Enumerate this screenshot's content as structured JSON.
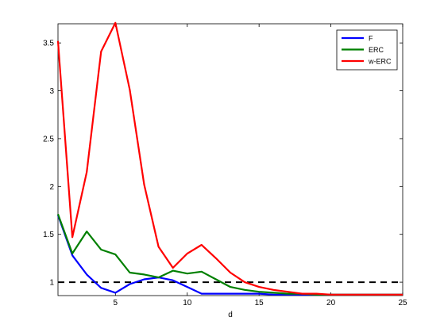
{
  "chart_data": {
    "type": "line",
    "title": "",
    "xlabel": "d",
    "ylabel": "",
    "xlim": [
      1,
      25
    ],
    "ylim": [
      0.86,
      3.7
    ],
    "grid": false,
    "legend_position": "top-right",
    "xticks": [
      5,
      10,
      15,
      20,
      25
    ],
    "yticks": [
      1,
      1.5,
      2,
      2.5,
      3,
      3.5
    ],
    "x": [
      1,
      2,
      3,
      4,
      5,
      6,
      7,
      8,
      9,
      10,
      11,
      12,
      13,
      14,
      15,
      16,
      17,
      18,
      19,
      20,
      21,
      22,
      23,
      24,
      25
    ],
    "series": [
      {
        "name": "F",
        "color": "#0000ff",
        "values": [
          1.7,
          1.28,
          1.08,
          0.94,
          0.89,
          0.98,
          1.03,
          1.05,
          1.02,
          0.95,
          0.88,
          0.88,
          0.88,
          0.88,
          0.88,
          0.87,
          0.87,
          0.87,
          0.87,
          0.87,
          0.87,
          0.87,
          0.87,
          0.87,
          0.87
        ]
      },
      {
        "name": "ERC",
        "color": "#008000",
        "values": [
          1.71,
          1.3,
          1.53,
          1.34,
          1.29,
          1.1,
          1.08,
          1.05,
          1.12,
          1.09,
          1.11,
          1.03,
          0.95,
          0.92,
          0.9,
          0.89,
          0.88,
          0.88,
          0.87,
          0.87,
          0.87,
          0.87,
          0.87,
          0.87,
          0.87
        ]
      },
      {
        "name": "w-ERC",
        "color": "#ff0000",
        "values": [
          3.52,
          1.47,
          2.15,
          3.41,
          3.71,
          3.01,
          2.02,
          1.37,
          1.15,
          1.3,
          1.39,
          1.25,
          1.1,
          1.0,
          0.95,
          0.92,
          0.9,
          0.88,
          0.88,
          0.87,
          0.87,
          0.87,
          0.87,
          0.87,
          0.87
        ]
      }
    ],
    "reference_line": {
      "y": 1.0,
      "style": "dashed",
      "color": "#000000"
    }
  }
}
